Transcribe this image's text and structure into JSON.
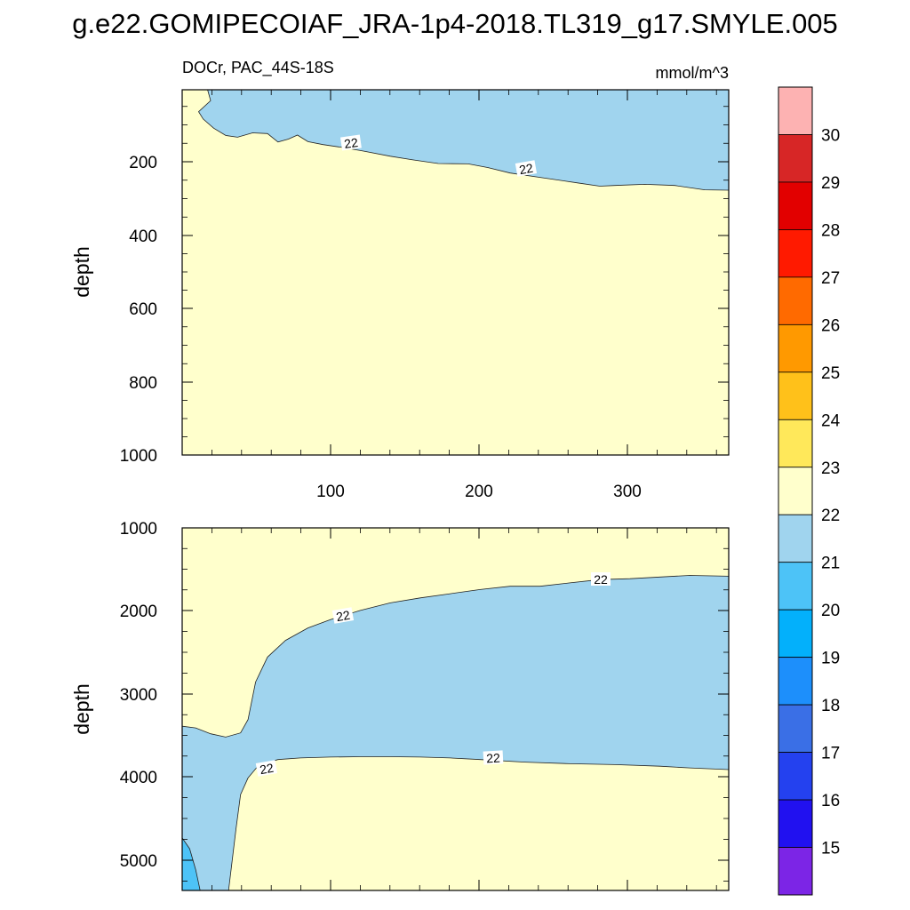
{
  "chart_data": {
    "title": "g.e22.GOMIPECOIAF_JRA-1p4-2018.TL319_g17.SMYLE.005",
    "type": "contour",
    "panels": [
      {
        "name": "upper",
        "left_label": "DOCr, PAC_44S-18S",
        "right_label": "mmol/m^3",
        "ylabel": "depth",
        "xlim": [
          1,
          366
        ],
        "ylim": [
          0,
          1000
        ],
        "y_inverted": true,
        "xticks": [
          "100",
          "200",
          "300"
        ],
        "yticks": [
          "200",
          "400",
          "600",
          "800",
          "1000"
        ],
        "contour_labels": [
          "22",
          "22"
        ],
        "regions": [
          {
            "name": "DOCr 21-22",
            "color": "#a0d4ee",
            "points": [
              [
                1,
                0
              ],
              [
                366,
                0
              ],
              [
                366,
                275
              ],
              [
                350,
                274
              ],
              [
                330,
                262
              ],
              [
                310,
                259
              ],
              [
                290,
                262
              ],
              [
                280,
                264
              ],
              [
                265,
                255
              ],
              [
                240,
                240
              ],
              [
                220,
                228
              ],
              [
                205,
                213
              ],
              [
                192,
                203
              ],
              [
                172,
                202
              ],
              [
                155,
                192
              ],
              [
                140,
                182
              ],
              [
                122,
                168
              ],
              [
                108,
                158
              ],
              [
                95,
                150
              ],
              [
                85,
                142
              ],
              [
                78,
                124
              ],
              [
                72,
                135
              ],
              [
                65,
                143
              ],
              [
                58,
                120
              ],
              [
                48,
                118
              ],
              [
                38,
                130
              ],
              [
                30,
                125
              ],
              [
                22,
                105
              ],
              [
                15,
                80
              ],
              [
                12,
                60
              ],
              [
                20,
                30
              ],
              [
                18,
                0
              ]
            ]
          }
        ]
      },
      {
        "name": "lower",
        "ylabel": "depth",
        "xlim": [
          1,
          366
        ],
        "ylim": [
          1000,
          5350
        ],
        "y_inverted": true,
        "yticks": [
          "1000",
          "2000",
          "3000",
          "4000",
          "5000"
        ],
        "contour_labels": [
          "22",
          "22",
          "22"
        ],
        "regions": [
          {
            "name": "DOCr 21-22",
            "color": "#a0d4ee",
            "points": [
              [
                1,
                3380
              ],
              [
                10,
                3400
              ],
              [
                20,
                3470
              ],
              [
                30,
                3510
              ],
              [
                40,
                3460
              ],
              [
                45,
                3300
              ],
              [
                50,
                2850
              ],
              [
                58,
                2550
              ],
              [
                70,
                2350
              ],
              [
                85,
                2200
              ],
              [
                100,
                2100
              ],
              [
                120,
                1990
              ],
              [
                140,
                1900
              ],
              [
                160,
                1840
              ],
              [
                180,
                1790
              ],
              [
                200,
                1740
              ],
              [
                220,
                1700
              ],
              [
                240,
                1700
              ],
              [
                260,
                1660
              ],
              [
                280,
                1620
              ],
              [
                300,
                1610
              ],
              [
                320,
                1590
              ],
              [
                340,
                1570
              ],
              [
                366,
                1580
              ],
              [
                366,
                3900
              ],
              [
                340,
                3880
              ],
              [
                320,
                3860
              ],
              [
                290,
                3840
              ],
              [
                260,
                3830
              ],
              [
                230,
                3810
              ],
              [
                200,
                3780
              ],
              [
                180,
                3760
              ],
              [
                160,
                3750
              ],
              [
                140,
                3745
              ],
              [
                120,
                3745
              ],
              [
                100,
                3750
              ],
              [
                80,
                3760
              ],
              [
                65,
                3780
              ],
              [
                52,
                3850
              ],
              [
                45,
                4000
              ],
              [
                40,
                4200
              ],
              [
                37,
                4600
              ],
              [
                35,
                4900
              ],
              [
                32,
                5350
              ],
              [
                1,
                5350
              ]
            ]
          },
          {
            "name": "DOCr 20-21",
            "color": "#4dc3f7",
            "points": [
              [
                1,
                4720
              ],
              [
                6,
                4850
              ],
              [
                10,
                5100
              ],
              [
                13,
                5350
              ],
              [
                1,
                5350
              ]
            ]
          }
        ]
      }
    ],
    "colorbar": {
      "labels": [
        "30",
        "29",
        "28",
        "27",
        "26",
        "25",
        "24",
        "23",
        "22",
        "21",
        "20",
        "19",
        "18",
        "17",
        "16",
        "15"
      ],
      "colors": [
        "#fdb2b2",
        "#d72626",
        "#e20000",
        "#ff1a00",
        "#ff6a00",
        "#ff9900",
        "#ffc11a",
        "#ffe85a",
        "#ffffcc",
        "#a0d4ee",
        "#4dc3f7",
        "#03b0fb",
        "#1d8ffb",
        "#3a6fe6",
        "#2441ef",
        "#2111f0",
        "#7c25e6"
      ]
    }
  }
}
